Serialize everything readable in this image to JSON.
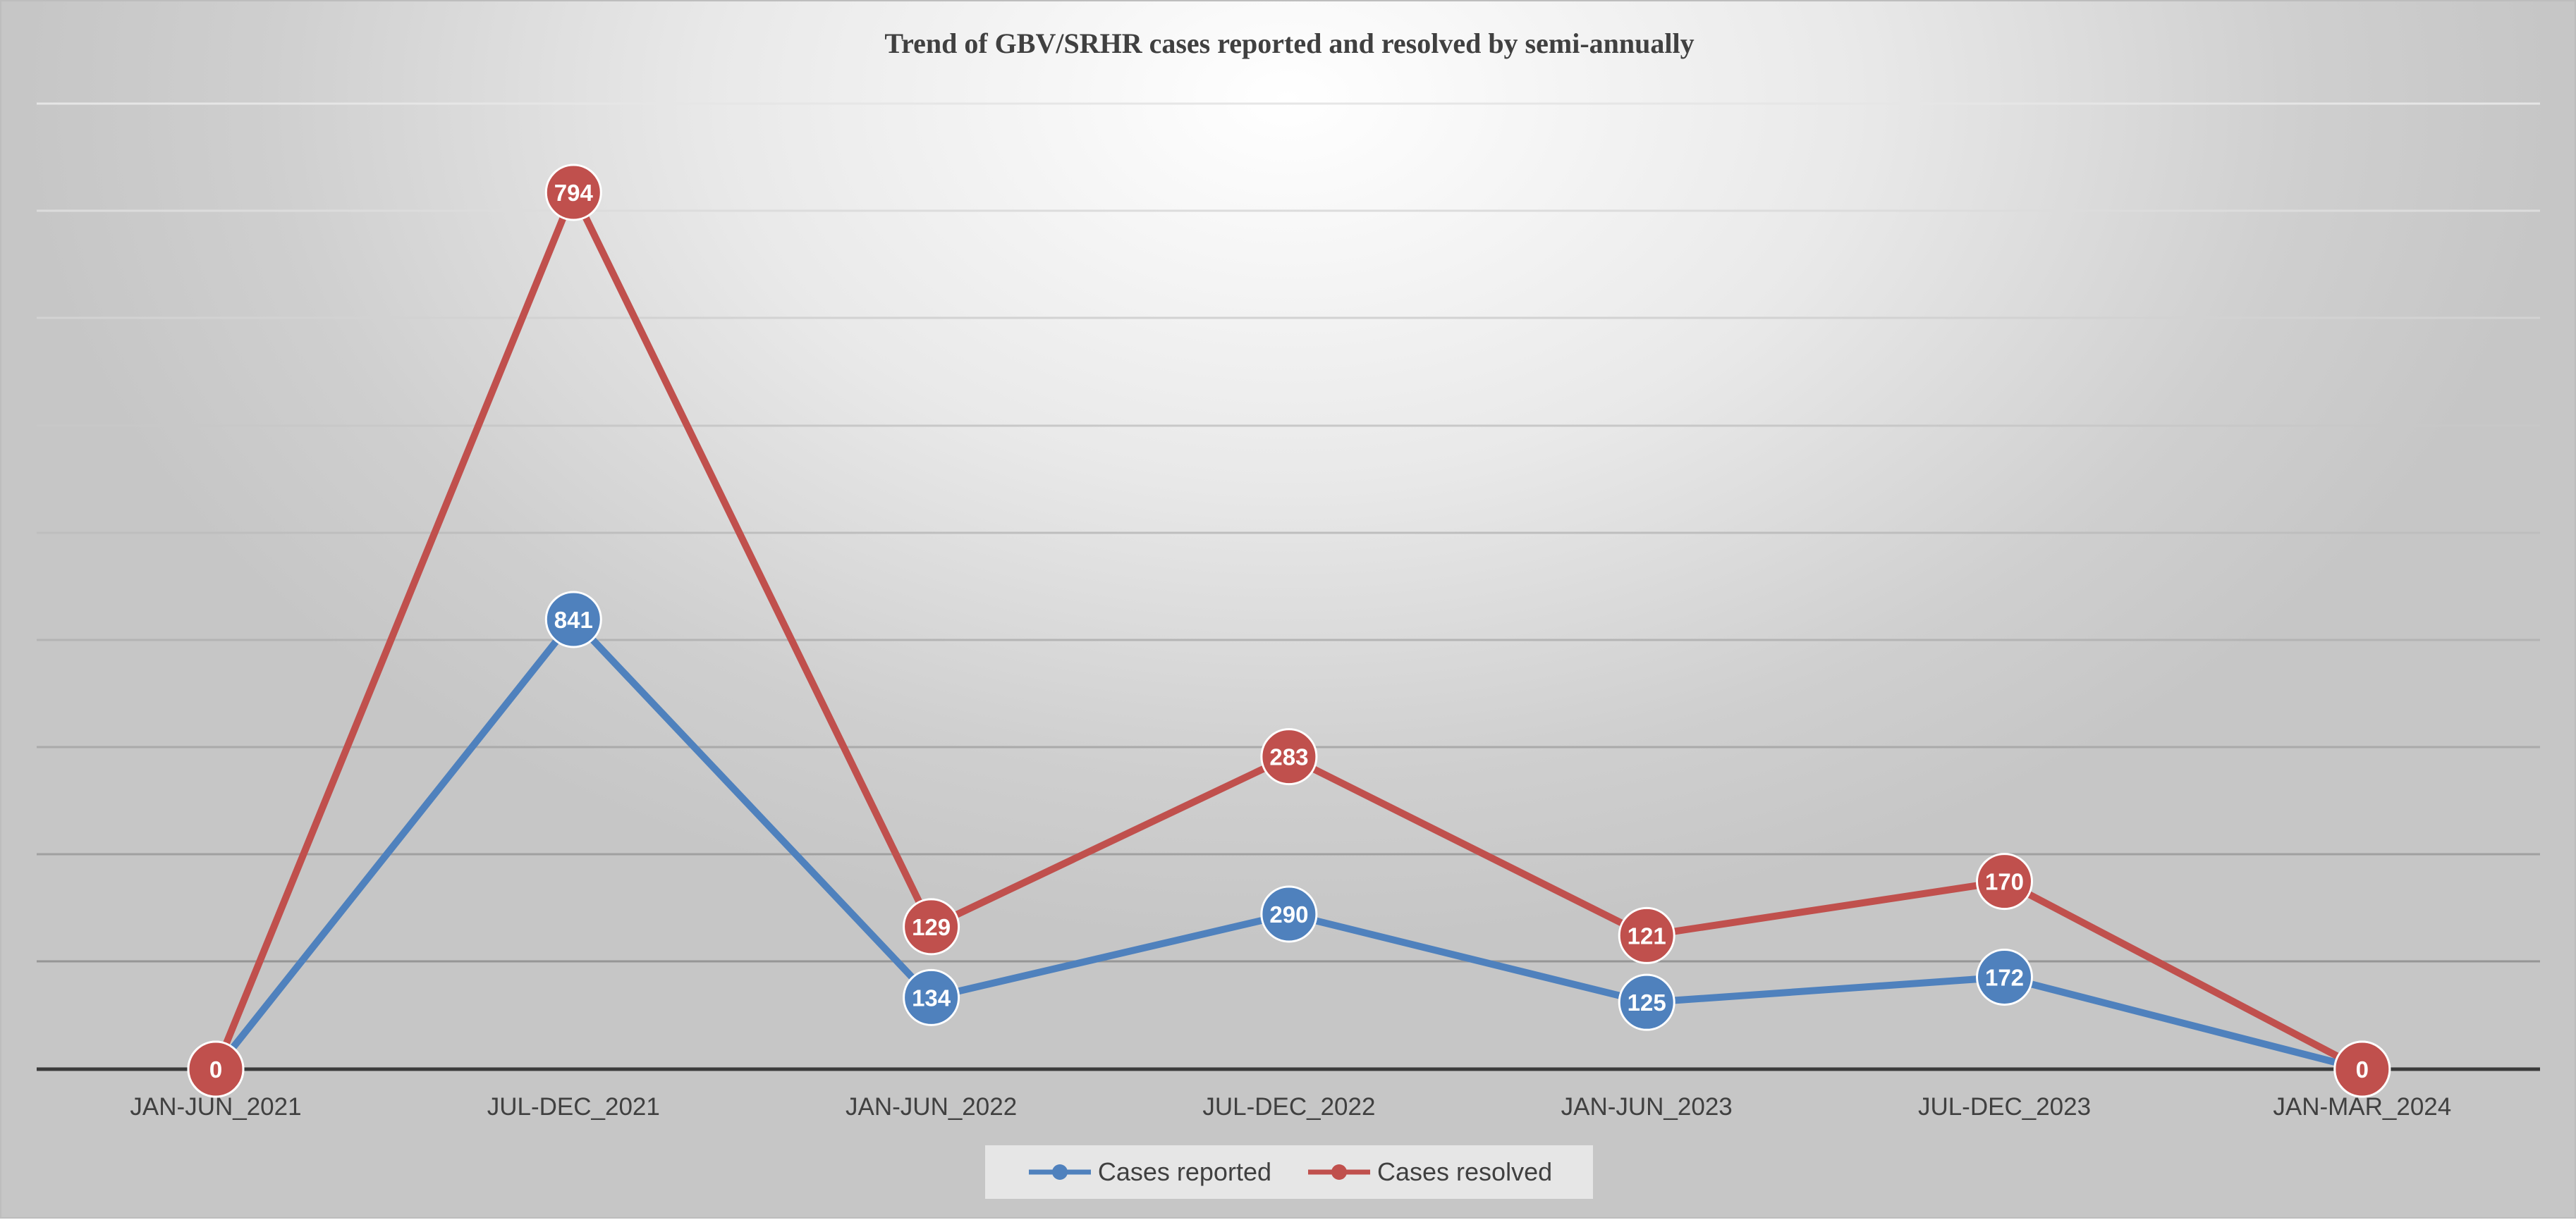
{
  "chart_data": {
    "type": "line",
    "title": "Trend of GBV/SRHR cases reported and resolved by semi-annually",
    "categories": [
      "JAN-JUN_2021",
      "JUL-DEC_2021",
      "JAN-JUN_2022",
      "JUL-DEC_2022",
      "JAN-JUN_2023",
      "JUL-DEC_2023",
      "JAN-MAR_2024"
    ],
    "series": [
      {
        "name": "Cases reported",
        "color": "#4F81BD",
        "values": [
          0,
          841,
          134,
          290,
          125,
          172,
          0
        ]
      },
      {
        "name": "Cases resolved",
        "color": "#C0504D",
        "values": [
          0,
          794,
          129,
          283,
          121,
          170,
          0
        ]
      }
    ],
    "grid": true,
    "legend_position": "bottom",
    "data_labels": true,
    "xlabel": "",
    "ylabel": ""
  }
}
